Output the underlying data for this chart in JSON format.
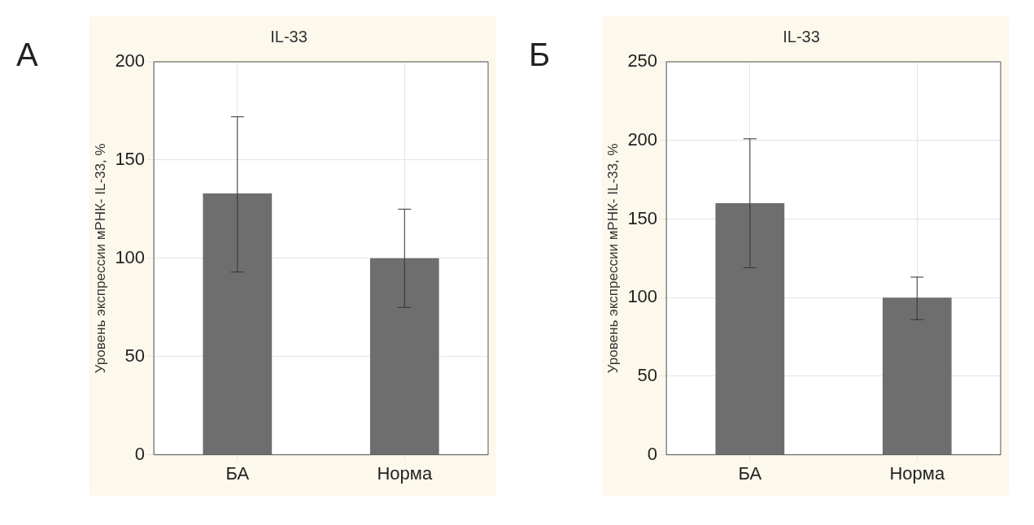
{
  "chart_data": [
    {
      "type": "bar",
      "title": "IL-33",
      "ylabel": "Уровень экспрессии мРНК- IL-33, %",
      "annotations": [
        "А"
      ],
      "categories": [
        "БА",
        "Норма"
      ],
      "values": [
        133,
        100
      ],
      "errors": [
        [
          93,
          172
        ],
        [
          75,
          125
        ]
      ],
      "color": "#6e6e6e",
      "ylim": [
        0,
        200
      ],
      "yticks": [
        0,
        50,
        100,
        150,
        200
      ],
      "grid": true
    },
    {
      "type": "bar",
      "title": "IL-33",
      "ylabel": "Уровень экспрессии мРНК- IL-33, %",
      "annotations": [
        "Б"
      ],
      "categories": [
        "БА",
        "Норма"
      ],
      "values": [
        160,
        100
      ],
      "errors": [
        [
          119,
          201
        ],
        [
          86,
          113
        ]
      ],
      "color": "#6e6e6e",
      "ylim": [
        0,
        250
      ],
      "yticks": [
        0,
        50,
        100,
        150,
        200,
        250
      ],
      "grid": true
    }
  ]
}
